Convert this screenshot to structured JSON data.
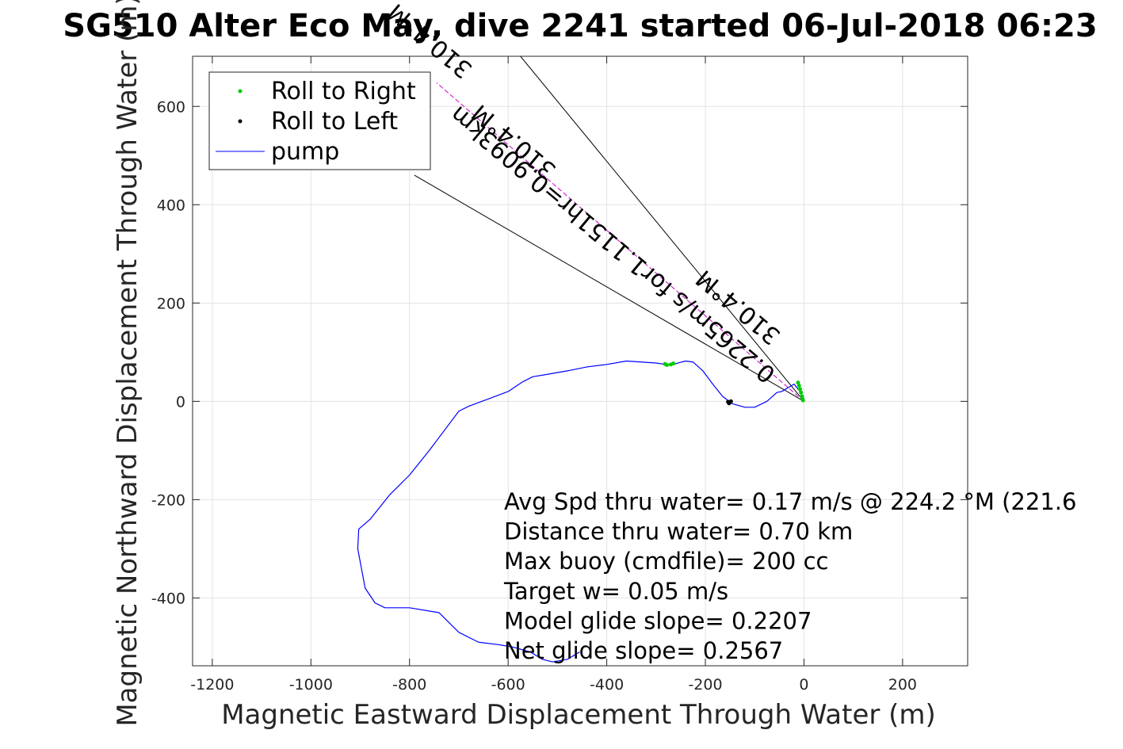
{
  "chart_data": {
    "type": "line",
    "title": "SG510 Alter Eco May, dive 2241 started 06-Jul-2018 06:23",
    "xlabel": "Magnetic Eastward Displacement Through Water (m)",
    "ylabel": "Magnetic Northward Displacement Through Water (m)",
    "xlim": [
      -1240,
      332
    ],
    "ylim": [
      -538,
      702
    ],
    "xticks": [
      -1200,
      -1000,
      -800,
      -600,
      -400,
      -200,
      0,
      200
    ],
    "yticks": [
      -400,
      -200,
      0,
      200,
      400,
      600
    ],
    "grid": true,
    "legend_placement": "top-left",
    "legend": [
      {
        "name": "Roll to Right",
        "marker": "dot",
        "color": "#00cc00"
      },
      {
        "name": "Roll to Left",
        "marker": "dot",
        "color": "#000000"
      },
      {
        "name": "pump",
        "marker": "line",
        "color": "#0000ff"
      }
    ],
    "series": [
      {
        "name": "pump",
        "color": "#0000ff",
        "x": [
          0,
          -8,
          -20,
          -45,
          -55,
          -75,
          -100,
          -120,
          -145,
          -165,
          -185,
          -205,
          -225,
          -240,
          -255,
          -265,
          -280,
          -300,
          -330,
          -360,
          -400,
          -440,
          -480,
          -520,
          -550,
          -570,
          -600,
          -640,
          -680,
          -700,
          -730,
          -760,
          -800,
          -840,
          -880,
          -903,
          -905,
          -890,
          -870,
          -850,
          -800,
          -740,
          -720,
          -700,
          -660,
          -620,
          -590,
          -555,
          -530,
          -510,
          -480,
          -455
        ],
        "y": [
          0,
          20,
          35,
          20,
          18,
          0,
          -12,
          -12,
          -5,
          10,
          35,
          62,
          80,
          82,
          78,
          75,
          75,
          78,
          80,
          82,
          75,
          70,
          62,
          55,
          50,
          40,
          20,
          5,
          -10,
          -20,
          -60,
          -100,
          -150,
          -190,
          -240,
          -260,
          -300,
          -380,
          -410,
          -420,
          -420,
          -430,
          -450,
          -470,
          -490,
          -495,
          -500,
          -510,
          -525,
          -530,
          -525,
          -510
        ]
      },
      {
        "name": "Roll to Right",
        "color": "#00cc00",
        "x": [
          -2,
          -4,
          -6,
          -8,
          -10,
          -12,
          -3,
          -270,
          -265,
          -278,
          -282
        ],
        "y": [
          2,
          10,
          18,
          25,
          32,
          38,
          5,
          75,
          77,
          74,
          76
        ],
        "marker": "dot"
      },
      {
        "name": "Roll to Left",
        "color": "#000000",
        "x": [
          -148,
          -150,
          -152,
          -154
        ],
        "y": [
          0,
          -2,
          -4,
          -1
        ],
        "marker": "dot"
      }
    ],
    "guide_lines": [
      {
        "x": [
          0,
          -575
        ],
        "y": [
          0,
          702
        ],
        "color": "#000000"
      },
      {
        "x": [
          0,
          -790
        ],
        "y": [
          0,
          460
        ],
        "color": "#000000"
      },
      {
        "x": [
          0,
          -745
        ],
        "y": [
          0,
          648
        ],
        "color": "#cc00cc",
        "style": "dashed"
      }
    ],
    "rotated_labels": [
      {
        "text": "0.2265m/s for1.1151hr=0.9093km",
        "anchor_x": -55,
        "anchor_y": 60,
        "angle_deg": 220
      },
      {
        "text": "310.4°M",
        "anchor_x": -45,
        "anchor_y": 138,
        "angle_deg": 220
      },
      {
        "text": "310.4°M",
        "anchor_x": -500,
        "anchor_y": 475,
        "angle_deg": 220
      },
      {
        "text": "310.4°M",
        "anchor_x": -670,
        "anchor_y": 680,
        "angle_deg": 220
      }
    ],
    "annotations": [
      "Avg Spd thru water=  0.17 m/s @ 224.2 °M (221.6",
      "Distance thru water=  0.70 km",
      "Max buoy (cmdfile)= 200 cc",
      "Target w= 0.05 m/s",
      "Model glide slope= 0.2207",
      "Net glide slope= 0.2567"
    ]
  }
}
